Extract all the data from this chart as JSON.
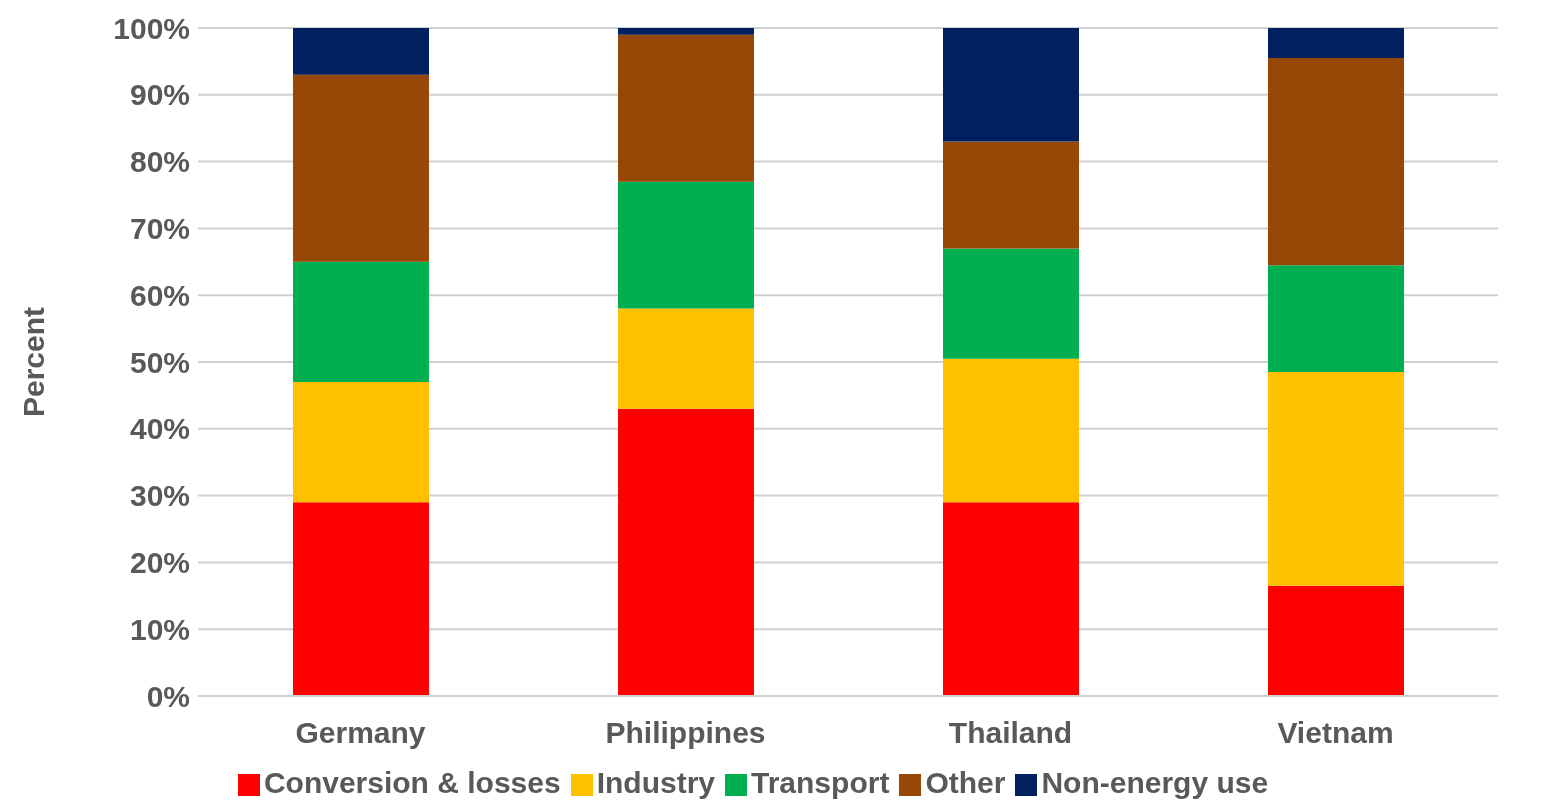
{
  "chart_data": {
    "type": "bar",
    "stacked": true,
    "ylabel": "Percent",
    "categories": [
      "Germany",
      "Philippines",
      "Thailand",
      "Vietnam"
    ],
    "series": [
      {
        "name": "Conversion & losses",
        "color": "#ff0000",
        "values": [
          29,
          43,
          29,
          16.5
        ]
      },
      {
        "name": "Industry",
        "color": "#ffc000",
        "values": [
          18,
          15,
          21.5,
          32
        ]
      },
      {
        "name": "Transport",
        "color": "#00b050",
        "values": [
          18,
          19,
          16.5,
          16
        ]
      },
      {
        "name": "Other",
        "color": "#974706",
        "values": [
          28,
          22,
          16,
          31
        ]
      },
      {
        "name": "Non-energy use",
        "color": "#002060",
        "values": [
          7,
          1,
          17,
          4.5
        ]
      }
    ],
    "ylim": [
      0,
      100
    ],
    "yticks": [
      {
        "value": 0,
        "label": "0%"
      },
      {
        "value": 10,
        "label": "10%"
      },
      {
        "value": 20,
        "label": "20%"
      },
      {
        "value": 30,
        "label": "30%"
      },
      {
        "value": 40,
        "label": "40%"
      },
      {
        "value": 50,
        "label": "50%"
      },
      {
        "value": 60,
        "label": "60%"
      },
      {
        "value": 70,
        "label": "70%"
      },
      {
        "value": 80,
        "label": "80%"
      },
      {
        "value": 90,
        "label": "90%"
      },
      {
        "value": 100,
        "label": "100%"
      }
    ],
    "grid": "y",
    "legend": "bottom"
  }
}
